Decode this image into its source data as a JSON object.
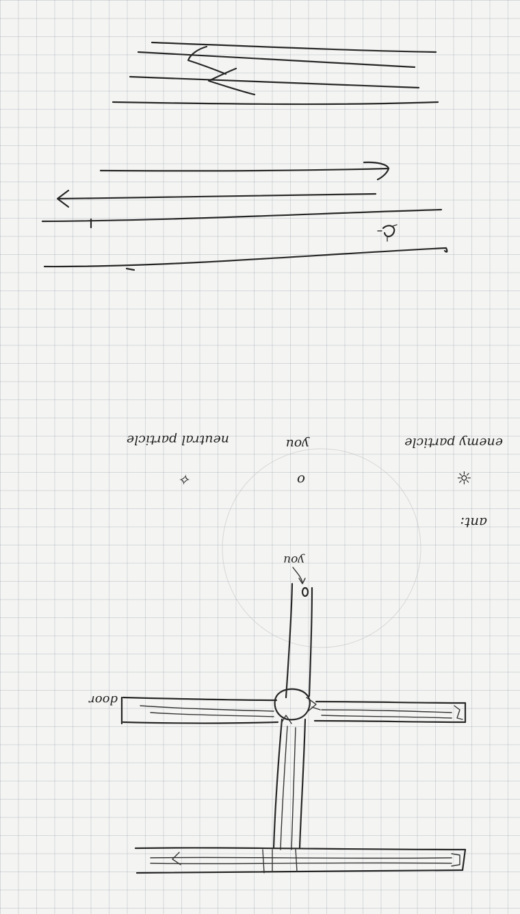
{
  "legend": {
    "title": "ant:",
    "enemy_label": "enemy particle",
    "you_label": "you",
    "neutral_label": "neutral particle",
    "enemy_symbol": "☼",
    "you_symbol": "o",
    "neutral_symbol": "✧"
  },
  "map": {
    "you_pointer_label": "you",
    "door_label": "door"
  },
  "colors": {
    "ink": "#262626",
    "paper": "#f4f4f2",
    "grid": "#a0aab8"
  }
}
